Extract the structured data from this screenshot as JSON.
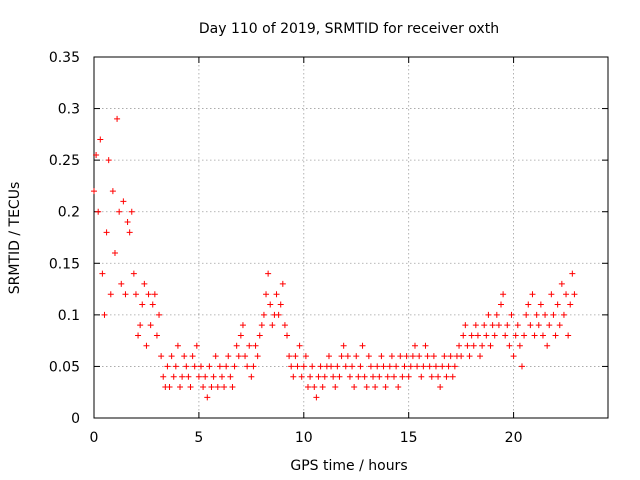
{
  "chart_data": {
    "type": "scatter",
    "title": "Day 110 of 2019, SRMTID for receiver oxth",
    "xlabel": "GPS time / hours",
    "ylabel": "SRMTID / TECUs",
    "xlim": [
      0,
      24.5
    ],
    "ylim": [
      0,
      0.35
    ],
    "x_ticks": [
      0,
      5,
      10,
      15,
      20
    ],
    "x_tick_labels": [
      "0",
      "5",
      "10",
      "15",
      "20"
    ],
    "y_ticks": [
      0,
      0.05,
      0.1,
      0.15,
      0.2,
      0.25,
      0.3,
      0.35
    ],
    "y_tick_labels": [
      "0",
      "0.05",
      "0.1",
      "0.15",
      "0.2",
      "0.25",
      "0.3",
      "0.35"
    ],
    "grid": true,
    "marker": "+",
    "color": "#ff0000",
    "series": [
      {
        "name": "oxth",
        "x": [
          0.0,
          0.1,
          0.2,
          0.3,
          0.4,
          0.5,
          0.6,
          0.7,
          0.8,
          0.9,
          1.0,
          1.1,
          1.2,
          1.3,
          1.4,
          1.5,
          1.6,
          1.7,
          1.8,
          1.9,
          2.0,
          2.1,
          2.2,
          2.3,
          2.4,
          2.5,
          2.6,
          2.7,
          2.8,
          2.9,
          3.0,
          3.1,
          3.2,
          3.3,
          3.4,
          3.5,
          3.6,
          3.7,
          3.8,
          3.9,
          4.0,
          4.1,
          4.2,
          4.3,
          4.4,
          4.5,
          4.6,
          4.7,
          4.8,
          4.9,
          5.0,
          5.1,
          5.2,
          5.3,
          5.4,
          5.5,
          5.6,
          5.7,
          5.8,
          5.9,
          6.0,
          6.1,
          6.2,
          6.3,
          6.4,
          6.5,
          6.6,
          6.7,
          6.8,
          6.9,
          7.0,
          7.1,
          7.2,
          7.3,
          7.4,
          7.5,
          7.6,
          7.7,
          7.8,
          7.9,
          8.0,
          8.1,
          8.2,
          8.3,
          8.4,
          8.5,
          8.6,
          8.7,
          8.8,
          8.9,
          9.0,
          9.1,
          9.2,
          9.3,
          9.4,
          9.5,
          9.6,
          9.7,
          9.8,
          9.9,
          10.0,
          10.1,
          10.2,
          10.3,
          10.4,
          10.5,
          10.6,
          10.7,
          10.8,
          10.9,
          11.0,
          11.1,
          11.2,
          11.3,
          11.4,
          11.5,
          11.6,
          11.7,
          11.8,
          11.9,
          12.0,
          12.1,
          12.2,
          12.3,
          12.4,
          12.5,
          12.6,
          12.7,
          12.8,
          12.9,
          13.0,
          13.1,
          13.2,
          13.3,
          13.4,
          13.5,
          13.6,
          13.7,
          13.8,
          13.9,
          14.0,
          14.1,
          14.2,
          14.3,
          14.4,
          14.5,
          14.6,
          14.7,
          14.8,
          14.9,
          15.0,
          15.1,
          15.2,
          15.3,
          15.4,
          15.5,
          15.6,
          15.7,
          15.8,
          15.9,
          16.0,
          16.1,
          16.2,
          16.3,
          16.4,
          16.5,
          16.6,
          16.7,
          16.8,
          16.9,
          17.0,
          17.1,
          17.2,
          17.3,
          17.4,
          17.5,
          17.6,
          17.7,
          17.8,
          17.9,
          18.0,
          18.1,
          18.2,
          18.3,
          18.4,
          18.5,
          18.6,
          18.7,
          18.8,
          18.9,
          19.0,
          19.1,
          19.2,
          19.3,
          19.4,
          19.5,
          19.6,
          19.7,
          19.8,
          19.9,
          20.0,
          20.1,
          20.2,
          20.3,
          20.4,
          20.5,
          20.6,
          20.7,
          20.8,
          20.9,
          21.0,
          21.1,
          21.2,
          21.3,
          21.4,
          21.5,
          21.6,
          21.7,
          21.8,
          21.9,
          22.0,
          22.1,
          22.2,
          22.3,
          22.4,
          22.5,
          22.6,
          22.7,
          22.8,
          22.9
        ],
        "y": [
          0.22,
          0.255,
          0.2,
          0.27,
          0.14,
          0.1,
          0.18,
          0.25,
          0.12,
          0.22,
          0.16,
          0.29,
          0.2,
          0.13,
          0.21,
          0.12,
          0.19,
          0.18,
          0.2,
          0.14,
          0.12,
          0.08,
          0.09,
          0.11,
          0.13,
          0.07,
          0.12,
          0.09,
          0.11,
          0.12,
          0.08,
          0.1,
          0.06,
          0.04,
          0.03,
          0.05,
          0.03,
          0.06,
          0.04,
          0.05,
          0.07,
          0.03,
          0.04,
          0.06,
          0.05,
          0.04,
          0.03,
          0.06,
          0.05,
          0.07,
          0.04,
          0.05,
          0.03,
          0.04,
          0.02,
          0.05,
          0.03,
          0.04,
          0.06,
          0.03,
          0.05,
          0.04,
          0.03,
          0.05,
          0.06,
          0.04,
          0.03,
          0.05,
          0.07,
          0.06,
          0.08,
          0.09,
          0.06,
          0.05,
          0.07,
          0.04,
          0.05,
          0.07,
          0.06,
          0.08,
          0.09,
          0.1,
          0.12,
          0.14,
          0.11,
          0.09,
          0.1,
          0.12,
          0.1,
          0.11,
          0.13,
          0.09,
          0.08,
          0.06,
          0.05,
          0.04,
          0.06,
          0.05,
          0.07,
          0.04,
          0.05,
          0.06,
          0.03,
          0.04,
          0.05,
          0.03,
          0.02,
          0.04,
          0.05,
          0.03,
          0.04,
          0.05,
          0.06,
          0.05,
          0.04,
          0.03,
          0.05,
          0.04,
          0.06,
          0.07,
          0.05,
          0.06,
          0.04,
          0.05,
          0.03,
          0.06,
          0.04,
          0.05,
          0.07,
          0.04,
          0.03,
          0.06,
          0.05,
          0.04,
          0.03,
          0.05,
          0.04,
          0.06,
          0.05,
          0.03,
          0.04,
          0.05,
          0.06,
          0.04,
          0.05,
          0.03,
          0.06,
          0.04,
          0.05,
          0.06,
          0.04,
          0.05,
          0.06,
          0.07,
          0.05,
          0.06,
          0.04,
          0.05,
          0.07,
          0.06,
          0.05,
          0.04,
          0.06,
          0.05,
          0.04,
          0.03,
          0.05,
          0.06,
          0.04,
          0.05,
          0.06,
          0.04,
          0.05,
          0.06,
          0.07,
          0.06,
          0.08,
          0.09,
          0.07,
          0.06,
          0.08,
          0.07,
          0.09,
          0.08,
          0.06,
          0.07,
          0.09,
          0.08,
          0.1,
          0.07,
          0.09,
          0.08,
          0.1,
          0.09,
          0.11,
          0.12,
          0.08,
          0.09,
          0.07,
          0.1,
          0.06,
          0.08,
          0.09,
          0.07,
          0.05,
          0.08,
          0.1,
          0.11,
          0.09,
          0.12,
          0.08,
          0.1,
          0.09,
          0.11,
          0.08,
          0.1,
          0.07,
          0.09,
          0.12,
          0.1,
          0.08,
          0.11,
          0.09,
          0.13,
          0.1,
          0.12,
          0.08,
          0.11,
          0.14,
          0.12
        ]
      }
    ]
  }
}
